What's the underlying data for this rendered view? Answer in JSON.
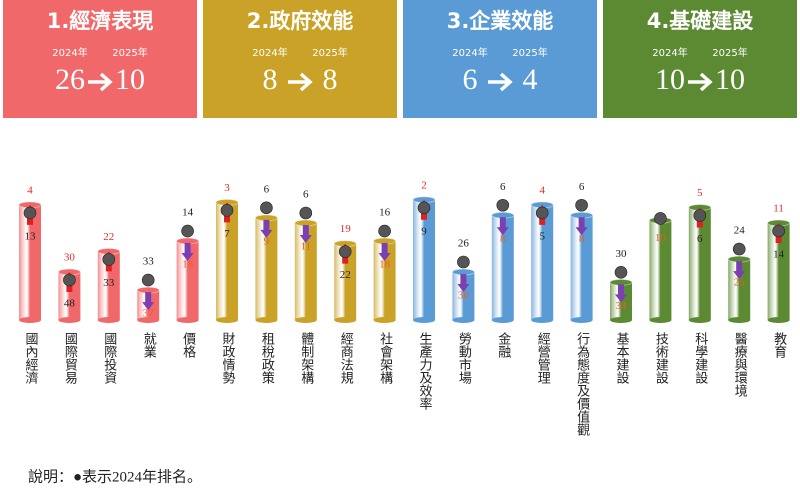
{
  "groups": [
    {
      "title": "1.經濟表現",
      "color": "#f0686a",
      "year_from": "2024年",
      "year_to": "2025年",
      "from": 26,
      "to": 10,
      "items": [
        {
          "name": "國內經濟",
          "y2024": 13,
          "y2025": 4
        },
        {
          "name": "國際貿易",
          "y2024": 48,
          "y2025": 30
        },
        {
          "name": "國際投資",
          "y2024": 33,
          "y2025": 22
        },
        {
          "name": "就業",
          "y2024": 33,
          "y2025": 37
        },
        {
          "name": "價格",
          "y2024": 14,
          "y2025": 18
        }
      ]
    },
    {
      "title": "2.政府效能",
      "color": "#c9a227",
      "year_from": "2024年",
      "year_to": "2025年",
      "from": 8,
      "to": 8,
      "items": [
        {
          "name": "財政情勢",
          "y2024": 7,
          "y2025": 3
        },
        {
          "name": "租稅政策",
          "y2024": 6,
          "y2025": 9
        },
        {
          "name": "體制架構",
          "y2024": 6,
          "y2025": 11
        },
        {
          "name": "經商法規",
          "y2024": 22,
          "y2025": 19
        },
        {
          "name": "社會架構",
          "y2024": 16,
          "y2025": 18
        }
      ]
    },
    {
      "title": "3.企業效能",
      "color": "#5b9bd5",
      "year_from": "2024年",
      "year_to": "2025年",
      "from": 6,
      "to": 4,
      "items": [
        {
          "name": "生產力及效率",
          "y2024": 9,
          "y2025": 2
        },
        {
          "name": "勞動市場",
          "y2024": 26,
          "y2025": 30
        },
        {
          "name": "金融",
          "y2024": 6,
          "y2025": 8
        },
        {
          "name": "經營管理",
          "y2024": 5,
          "y2025": 4
        },
        {
          "name": "行為態度及價值觀",
          "y2024": 6,
          "y2025": 8
        }
      ]
    },
    {
      "title": "4.基礎建設",
      "color": "#5b8a32",
      "year_from": "2024年",
      "year_to": "2025年",
      "from": 10,
      "to": 10,
      "items": [
        {
          "name": "基本建設",
          "y2024": 30,
          "y2025": 34
        },
        {
          "name": "技術建設",
          "y2024": 10,
          "y2025": 10
        },
        {
          "name": "科學建設",
          "y2024": 6,
          "y2025": 5
        },
        {
          "name": "醫療與環境",
          "y2024": 24,
          "y2025": 25
        },
        {
          "name": "教育",
          "y2024": 14,
          "y2025": 11
        }
      ]
    }
  ],
  "note": "說明：●表示2024年排名。"
}
